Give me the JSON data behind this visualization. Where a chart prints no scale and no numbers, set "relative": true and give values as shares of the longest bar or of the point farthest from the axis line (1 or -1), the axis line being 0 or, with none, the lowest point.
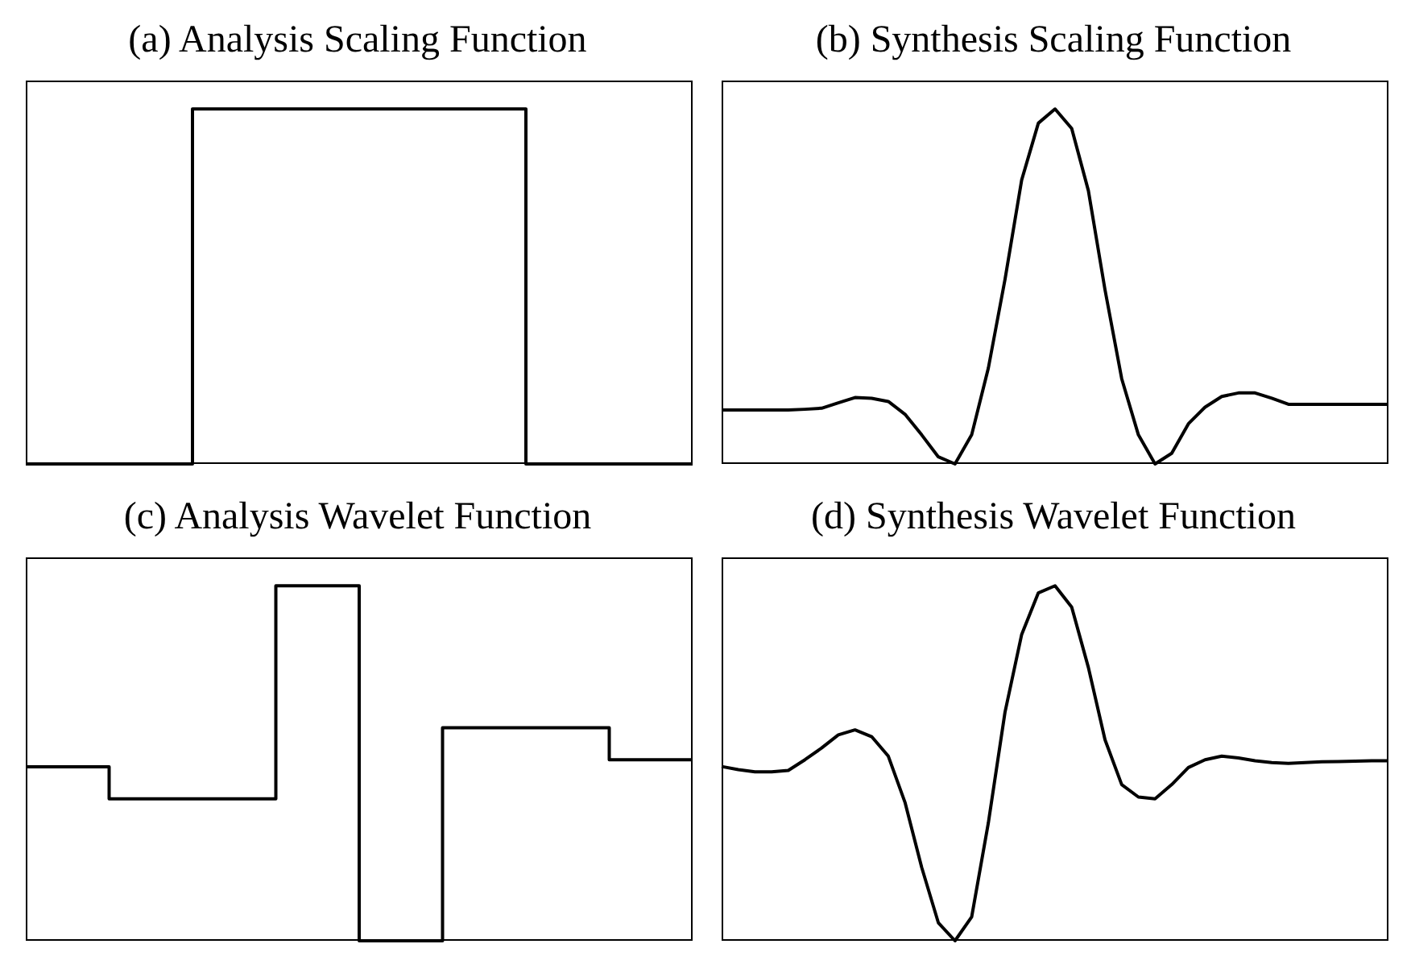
{
  "chart_data": [
    {
      "type": "step",
      "title": "(a) Analysis Scaling Function",
      "relative": true,
      "color": "#000000",
      "categories": [
        null,
        null,
        null,
        null,
        null
      ],
      "values": [
        0,
        1,
        1,
        0,
        0
      ]
    },
    {
      "type": "line",
      "title": "(b) Synthesis Scaling Function",
      "relative": true,
      "color": "#000000",
      "categories": [
        null,
        null,
        null,
        null,
        null,
        null,
        null,
        null,
        null,
        null,
        null,
        null,
        null,
        null,
        null,
        null,
        null,
        null,
        null,
        null,
        null,
        null,
        null,
        null,
        null,
        null,
        null,
        null,
        null,
        null,
        null,
        null,
        null,
        null,
        null,
        null,
        null,
        null,
        null,
        null,
        null
      ],
      "values": [
        0.152,
        0.152,
        0.152,
        0.152,
        0.152,
        0.154,
        0.157,
        0.172,
        0.187,
        0.185,
        0.176,
        0.14,
        0.082,
        0.02,
        0,
        0.082,
        0.27,
        0.52,
        0.8,
        0.96,
        1,
        0.945,
        0.77,
        0.49,
        0.24,
        0.082,
        0,
        0.03,
        0.113,
        0.16,
        0.19,
        0.2,
        0.2,
        0.185,
        0.168,
        0.168,
        0.168,
        0.168,
        0.168,
        0.168,
        0.168
      ]
    },
    {
      "type": "step",
      "title": "(c) Analysis Wavelet Function",
      "relative": true,
      "color": "#000000",
      "categories": [
        null,
        null,
        null,
        null,
        null,
        null,
        null,
        null,
        null
      ],
      "values": [
        0.49,
        0.4,
        0.4,
        1,
        0,
        0.6,
        0.6,
        0.51,
        0.51
      ]
    },
    {
      "type": "line",
      "title": "(d) Synthesis Wavelet Function",
      "relative": true,
      "color": "#000000",
      "categories": [
        null,
        null,
        null,
        null,
        null,
        null,
        null,
        null,
        null,
        null,
        null,
        null,
        null,
        null,
        null,
        null,
        null,
        null,
        null,
        null,
        null,
        null,
        null,
        null,
        null,
        null,
        null,
        null,
        null,
        null,
        null,
        null,
        null,
        null,
        null,
        null,
        null,
        null,
        null,
        null,
        null
      ],
      "values": [
        0.491,
        0.482,
        0.476,
        0.476,
        0.48,
        0.51,
        0.543,
        0.58,
        0.594,
        0.575,
        0.52,
        0.39,
        0.207,
        0.051,
        0,
        0.067,
        0.332,
        0.644,
        0.863,
        0.98,
        1,
        0.94,
        0.77,
        0.566,
        0.44,
        0.405,
        0.4,
        0.44,
        0.488,
        0.51,
        0.52,
        0.515,
        0.507,
        0.502,
        0.5,
        0.502,
        0.504,
        0.505,
        0.506,
        0.507,
        0.507
      ]
    }
  ]
}
